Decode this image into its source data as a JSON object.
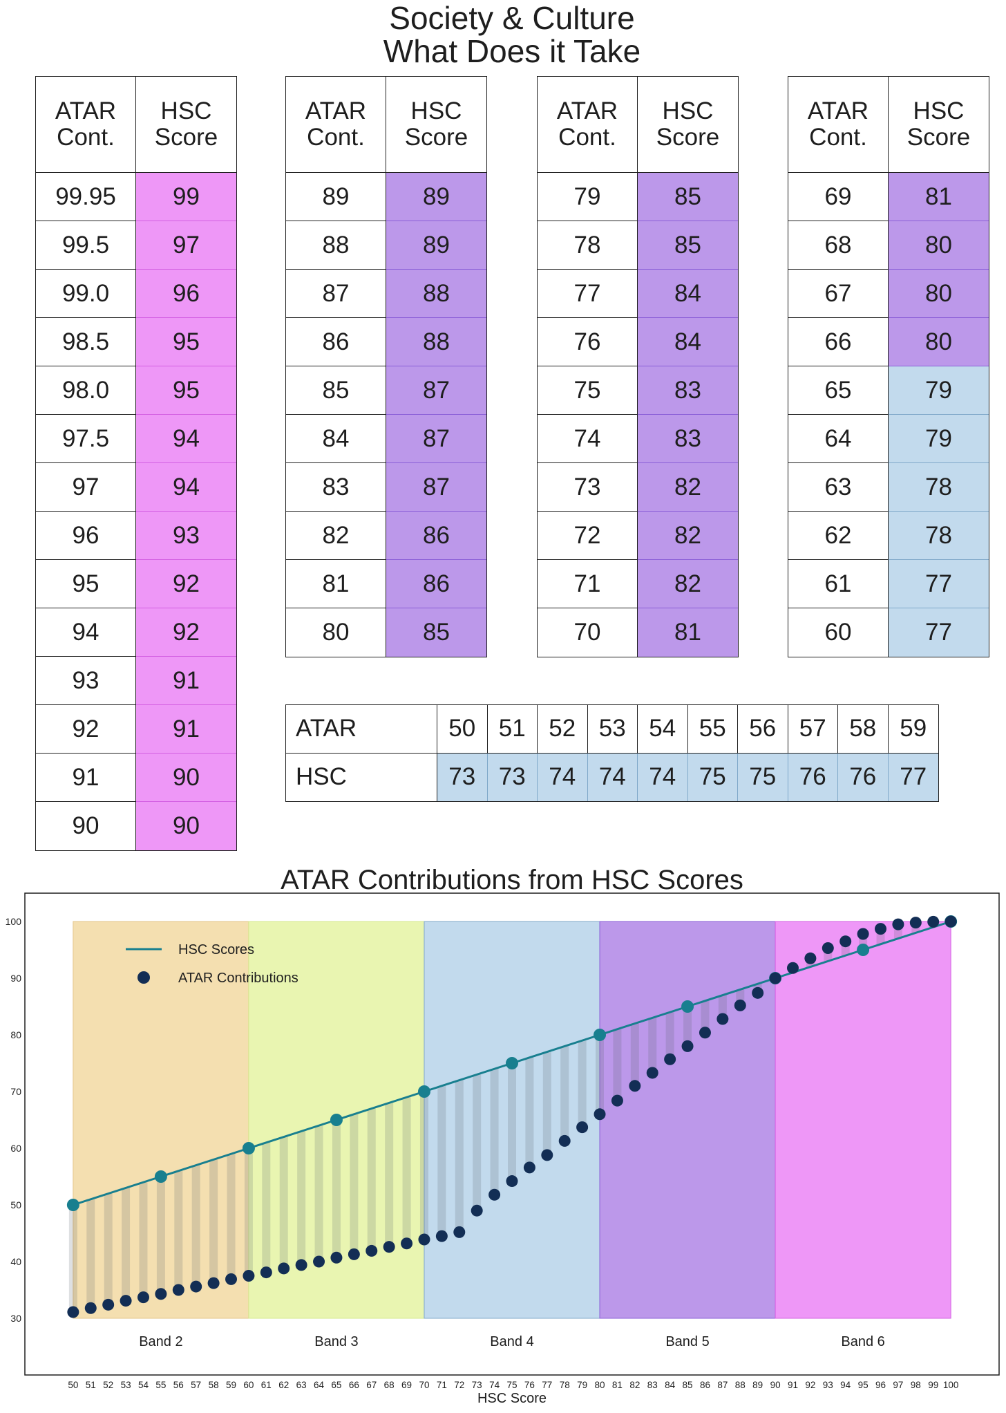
{
  "title": {
    "line1": "Society & Culture",
    "line2": "What Does it Take"
  },
  "chart_data": [
    {
      "type": "table",
      "columns": [
        "ATAR Cont.",
        "HSC Score"
      ],
      "rows": [
        [
          "99.95",
          "99"
        ],
        [
          "99.5",
          "97"
        ],
        [
          "99.0",
          "96"
        ],
        [
          "98.5",
          "95"
        ],
        [
          "98.0",
          "95"
        ],
        [
          "97.5",
          "94"
        ],
        [
          "97",
          "94"
        ],
        [
          "96",
          "93"
        ],
        [
          "95",
          "92"
        ],
        [
          "94",
          "92"
        ],
        [
          "93",
          "91"
        ],
        [
          "92",
          "91"
        ],
        [
          "91",
          "90"
        ],
        [
          "90",
          "90"
        ]
      ]
    },
    {
      "type": "table",
      "columns": [
        "ATAR Cont.",
        "HSC Score"
      ],
      "rows": [
        [
          "89",
          "89"
        ],
        [
          "88",
          "89"
        ],
        [
          "87",
          "88"
        ],
        [
          "86",
          "88"
        ],
        [
          "85",
          "87"
        ],
        [
          "84",
          "87"
        ],
        [
          "83",
          "87"
        ],
        [
          "82",
          "86"
        ],
        [
          "81",
          "86"
        ],
        [
          "80",
          "85"
        ]
      ]
    },
    {
      "type": "table",
      "columns": [
        "ATAR Cont.",
        "HSC Score"
      ],
      "rows": [
        [
          "79",
          "85"
        ],
        [
          "78",
          "85"
        ],
        [
          "77",
          "84"
        ],
        [
          "76",
          "84"
        ],
        [
          "75",
          "83"
        ],
        [
          "74",
          "83"
        ],
        [
          "73",
          "82"
        ],
        [
          "72",
          "82"
        ],
        [
          "71",
          "82"
        ],
        [
          "70",
          "81"
        ]
      ]
    },
    {
      "type": "table",
      "columns": [
        "ATAR Cont.",
        "HSC Score"
      ],
      "rows": [
        [
          "69",
          "81"
        ],
        [
          "68",
          "80"
        ],
        [
          "67",
          "80"
        ],
        [
          "66",
          "80"
        ],
        [
          "65",
          "79"
        ],
        [
          "64",
          "79"
        ],
        [
          "63",
          "78"
        ],
        [
          "62",
          "78"
        ],
        [
          "61",
          "77"
        ],
        [
          "60",
          "77"
        ]
      ]
    },
    {
      "type": "table",
      "row_labels": [
        "ATAR",
        "HSC"
      ],
      "rows": [
        [
          "50",
          "51",
          "52",
          "53",
          "54",
          "55",
          "56",
          "57",
          "58",
          "59"
        ],
        [
          "73",
          "73",
          "74",
          "74",
          "74",
          "75",
          "75",
          "76",
          "76",
          "77"
        ]
      ]
    },
    {
      "type": "line",
      "title": "ATAR Contributions from HSC Scores",
      "xlabel": "HSC Score",
      "xlim": [
        47.25,
        102.75
      ],
      "ylim": [
        20,
        105
      ],
      "x_ticks": [
        50,
        51,
        52,
        53,
        54,
        55,
        56,
        57,
        58,
        59,
        60,
        61,
        62,
        63,
        64,
        65,
        66,
        67,
        68,
        69,
        70,
        71,
        72,
        73,
        74,
        75,
        76,
        77,
        78,
        79,
        80,
        81,
        82,
        83,
        84,
        85,
        86,
        87,
        88,
        89,
        90,
        91,
        92,
        93,
        94,
        95,
        96,
        97,
        98,
        99,
        100
      ],
      "y_ticks": [
        30,
        40,
        50,
        60,
        70,
        80,
        90,
        100
      ],
      "grid": false,
      "legend": "top-left",
      "band_y_range": [
        30,
        100
      ],
      "bands": [
        {
          "name": "Band 2",
          "range": [
            50,
            60
          ],
          "color": "#f4dfb0",
          "edge": "#e3c58a"
        },
        {
          "name": "Band 3",
          "range": [
            60,
            70
          ],
          "color": "#e9f5b1",
          "edge": "#d4e88e"
        },
        {
          "name": "Band 4",
          "range": [
            70,
            80
          ],
          "color": "#c2daed",
          "edge": "#7fa8c9"
        },
        {
          "name": "Band 5",
          "range": [
            80,
            90
          ],
          "color": "#bc98ea",
          "edge": "#8a5ed7"
        },
        {
          "name": "Band 6",
          "range": [
            90,
            100
          ],
          "color": "#ee97f7",
          "edge": "#d35fe2"
        }
      ],
      "series": [
        {
          "name": "HSC Scores",
          "type": "line",
          "color": "#187f8f",
          "x": [
            50,
            55,
            60,
            65,
            70,
            75,
            80,
            85,
            90,
            95,
            100
          ],
          "y": [
            50,
            55,
            60,
            65,
            70,
            75,
            80,
            85,
            90,
            95,
            100
          ]
        },
        {
          "name": "ATAR Contributions",
          "type": "scatter",
          "color": "#132e55",
          "x": [
            50,
            51,
            52,
            53,
            54,
            55,
            56,
            57,
            58,
            59,
            60,
            61,
            62,
            63,
            64,
            65,
            66,
            67,
            68,
            69,
            70,
            71,
            72,
            73,
            74,
            75,
            76,
            77,
            78,
            79,
            80,
            81,
            82,
            83,
            84,
            85,
            86,
            87,
            88,
            89,
            90,
            91,
            92,
            93,
            94,
            95,
            96,
            97,
            98,
            99,
            100
          ],
          "y": [
            31.1,
            31.8,
            32.4,
            33.1,
            33.7,
            34.3,
            35.0,
            35.6,
            36.2,
            36.9,
            37.5,
            38.1,
            38.8,
            39.4,
            40.0,
            40.7,
            41.3,
            41.9,
            42.6,
            43.2,
            43.9,
            44.5,
            45.2,
            49.0,
            51.8,
            54.2,
            56.6,
            58.8,
            61.3,
            63.7,
            66.0,
            68.4,
            71.0,
            73.3,
            75.7,
            78.0,
            80.4,
            82.8,
            85.2,
            87.4,
            90.0,
            91.8,
            93.5,
            95.3,
            96.5,
            97.8,
            98.7,
            99.5,
            99.8,
            99.95,
            100.0
          ]
        }
      ]
    }
  ]
}
